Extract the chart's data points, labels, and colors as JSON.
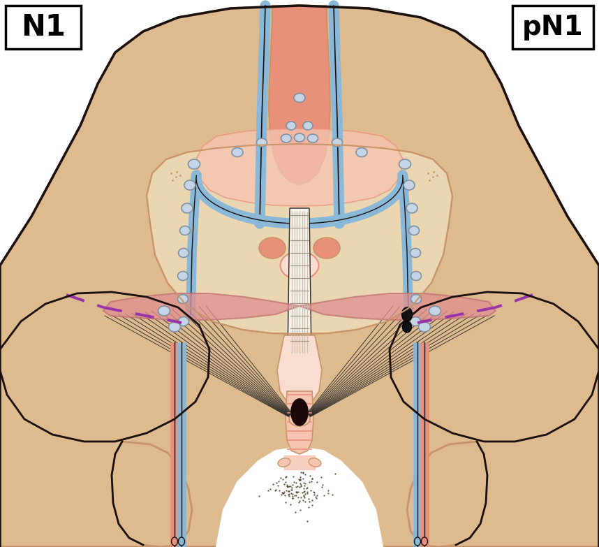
{
  "background_color": "#ffffff",
  "skin_color": "#deba8f",
  "skin_dark": "#c8956a",
  "pelvic_light": "#edddb8",
  "pink_salmon": "#e8907a",
  "light_pink": "#f5c5b0",
  "very_light_pink": "#f8ddd0",
  "blue_vessel": "#89b8d8",
  "dark_outline": "#1a1010",
  "lymph_fill": "#c5d5e5",
  "lymph_edge": "#8090a0",
  "black_node": "#111111",
  "muscle_pink": "#e09090",
  "nerve_dark": "#282828",
  "purple_dash": "#9933aa",
  "white_center": "#ffffff",
  "cream_white": "#f5f0e8",
  "label_n1": "N1",
  "label_pn1": "pN1",
  "figsize": [
    8.58,
    7.83
  ],
  "dpi": 100
}
